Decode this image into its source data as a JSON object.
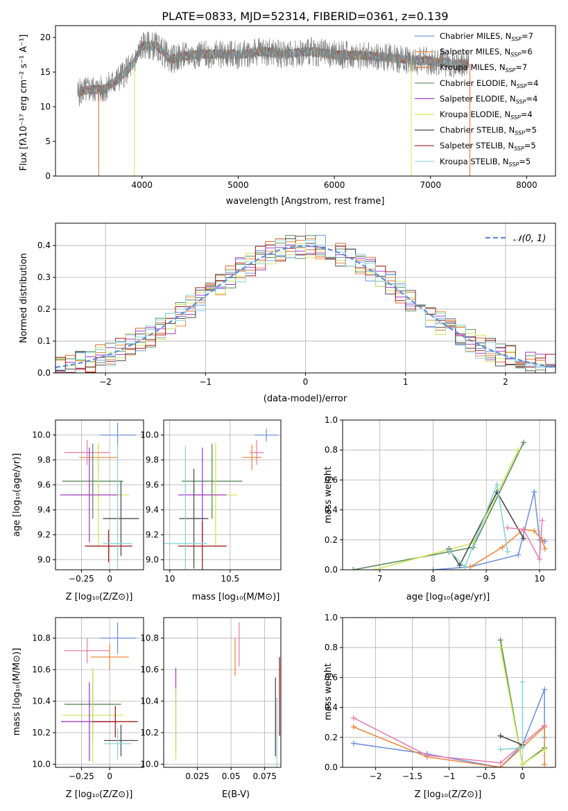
{
  "figure_title": "PLATE=0833, MJD=52314, FIBERID=0361, z=0.139",
  "colors": {
    "Chabrier MILES": "#6f94dc",
    "Salpeter MILES": "#ee8a3c",
    "Kroupa MILES": "#d96a2e",
    "Chabrier ELODIE": "#5a8a5a",
    "Salpeter ELODIE": "#a63ac9",
    "Kroupa ELODIE": "#cfe65a",
    "Chabrier STELIB": "#4b4b4b",
    "Salpeter STELIB": "#a11f1f",
    "Kroupa STELIB": "#86d4d8",
    "data": "#808080",
    "pink": "#e77fb0"
  },
  "chart_data": [
    {
      "id": "spectrum",
      "type": "line",
      "title": "",
      "xlabel": "wavelength [Angstrom, rest frame]",
      "ylabel": "Flux [fλ10⁻¹⁷ erg cm⁻² s⁻¹ A⁻¹]",
      "xlim": [
        3100,
        8300
      ],
      "ylim": [
        0,
        21.7
      ],
      "xticks": [
        4000,
        5000,
        6000,
        7000,
        8000
      ],
      "yticks": [
        0,
        5,
        10,
        15,
        20
      ],
      "grid": false,
      "legend_position": "top-right",
      "series": [
        {
          "name": "Chabrier MILES, N_SSP=7",
          "label_main": "Chabrier MILES, N",
          "label_sub": "SSP",
          "label_tail": "=7"
        },
        {
          "name": "Salpeter MILES, N_SSP=6",
          "label_main": "Salpeter MILES, N",
          "label_sub": "SSP",
          "label_tail": "=6"
        },
        {
          "name": "Kroupa MILES, N_SSP=7",
          "label_main": "Kroupa MILES, N",
          "label_sub": "SSP",
          "label_tail": "=7"
        },
        {
          "name": "Chabrier ELODIE, N_SSP=4",
          "label_main": "Chabrier ELODIE, N",
          "label_sub": "SSP",
          "label_tail": "=4"
        },
        {
          "name": "Salpeter ELODIE, N_SSP=4",
          "label_main": "Salpeter ELODIE, N",
          "label_sub": "SSP",
          "label_tail": "=4"
        },
        {
          "name": "Kroupa ELODIE, N_SSP=4",
          "label_main": "Kroupa ELODIE, N",
          "label_sub": "SSP",
          "label_tail": "=4"
        },
        {
          "name": "Chabrier STELIB, N_SSP=5",
          "label_main": "Chabrier STELIB, N",
          "label_sub": "SSP",
          "label_tail": "=5"
        },
        {
          "name": "Salpeter STELIB, N_SSP=5",
          "label_main": "Salpeter STELIB, N",
          "label_sub": "SSP",
          "label_tail": "=5"
        },
        {
          "name": "Kroupa STELIB, N_SSP=5",
          "label_main": "Kroupa STELIB, N",
          "label_sub": "SSP",
          "label_tail": "=5"
        }
      ],
      "data_points": {
        "x": [
          3330,
          3450,
          3600,
          3750,
          3900,
          4000,
          4150,
          4300,
          4500,
          4750,
          5000,
          5250,
          5500,
          5750,
          6000,
          6250,
          6500,
          6750,
          7000,
          7250,
          7400
        ],
        "y": [
          12.0,
          12.5,
          12.5,
          14.0,
          16.0,
          18.8,
          18.8,
          16.8,
          17.5,
          17.6,
          17.5,
          18.0,
          17.6,
          18.0,
          17.5,
          17.4,
          17.2,
          16.8,
          16.6,
          16.2,
          16.2
        ]
      }
    },
    {
      "id": "residuals",
      "type": "line",
      "xlabel": "(data-model)/error",
      "ylabel": "Normed distribution",
      "xlim": [
        -2.5,
        2.5
      ],
      "ylim": [
        0,
        0.47
      ],
      "xticks": [
        -2,
        -1,
        0,
        1,
        2
      ],
      "yticks": [
        0.0,
        0.1,
        0.2,
        0.3,
        0.4
      ],
      "grid": true,
      "legend_position": "top-right",
      "legend_label": "𝒩(0, 1)",
      "reference": "standard normal curve"
    },
    {
      "id": "age-vs-Z",
      "type": "scatter",
      "xlabel": "Z [log₁₀(Z/Z⊙)]",
      "ylabel": "age  [log₁₀(age/yr)]",
      "xlim": [
        -0.48,
        0.3
      ],
      "ylim": [
        8.92,
        10.12
      ],
      "xticks": [
        -0.25,
        0.0
      ],
      "yticks": [
        9.0,
        9.2,
        9.4,
        9.6,
        9.8,
        10.0
      ],
      "grid": true,
      "points": [
        {
          "x": 0.07,
          "y": 10.0,
          "xerr": 0.16,
          "yerr": 0.1
        },
        {
          "x": -0.2,
          "y": 9.86,
          "xerr": 0.2,
          "yerr": 0.1
        },
        {
          "x": -0.1,
          "y": 9.82,
          "xerr": 0.17,
          "yerr": 0.1
        },
        {
          "x": -0.15,
          "y": 9.63,
          "xerr": 0.27,
          "yerr": 0.3
        },
        {
          "x": -0.1,
          "y": 9.52,
          "xerr": 0.27,
          "yerr": 0.42
        },
        {
          "x": -0.18,
          "y": 9.52,
          "xerr": 0.26,
          "yerr": 0.38
        },
        {
          "x": 0.1,
          "y": 9.33,
          "xerr": 0.16,
          "yerr": 0.3
        },
        {
          "x": -0.01,
          "y": 9.11,
          "xerr": 0.21,
          "yerr": 0.13
        },
        {
          "x": 0.07,
          "y": 9.13,
          "xerr": 0.13,
          "yerr": 0.8
        }
      ]
    },
    {
      "id": "age-vs-mass",
      "type": "scatter",
      "xlabel": "mass [log₁₀(M/M⊙)]",
      "ylabel": "",
      "xlim": [
        9.95,
        10.92
      ],
      "ylim": [
        8.92,
        10.12
      ],
      "xticks": [
        10.0,
        10.5
      ],
      "yticks": [
        9.0,
        9.2,
        9.4,
        9.6,
        9.8,
        10.0
      ],
      "grid": true,
      "points": [
        {
          "x": 10.8,
          "y": 10.0,
          "xerr": 0.1,
          "yerr": 0.05
        },
        {
          "x": 10.72,
          "y": 9.86,
          "xerr": 0.06,
          "yerr": 0.1
        },
        {
          "x": 10.68,
          "y": 9.82,
          "xerr": 0.08,
          "yerr": 0.1
        },
        {
          "x": 10.35,
          "y": 9.63,
          "xerr": 0.25,
          "yerr": 0.3
        },
        {
          "x": 10.38,
          "y": 9.52,
          "xerr": 0.18,
          "yerr": 0.42
        },
        {
          "x": 10.27,
          "y": 9.52,
          "xerr": 0.2,
          "yerr": 0.38
        },
        {
          "x": 10.2,
          "y": 9.33,
          "xerr": 0.12,
          "yerr": 0.4
        },
        {
          "x": 10.27,
          "y": 9.11,
          "xerr": 0.2,
          "yerr": 0.2
        },
        {
          "x": 10.13,
          "y": 9.13,
          "xerr": 0.18,
          "yerr": 0.78
        }
      ]
    },
    {
      "id": "massweight-vs-age",
      "type": "line",
      "xlabel": "age  [log₁₀(age/yr)]",
      "ylabel": "mass weight",
      "xlim": [
        6.3,
        10.3
      ],
      "ylim": [
        0.0,
        1.0
      ],
      "xticks": [
        7,
        8,
        9,
        10
      ],
      "yticks": [
        0.0,
        0.2,
        0.4,
        0.6,
        0.8,
        1.0
      ],
      "grid": true,
      "series": [
        {
          "name": "Chabrier MILES",
          "x": [
            8.0,
            8.7,
            9.6,
            9.9,
            10.0,
            10.1
          ],
          "y": [
            0.0,
            0.02,
            0.1,
            0.52,
            0.2,
            0.19
          ]
        },
        {
          "name": "Salpeter MILES",
          "x": [
            8.7,
            9.3,
            9.7,
            9.9,
            10.05,
            10.1
          ],
          "y": [
            0.02,
            0.15,
            0.27,
            0.26,
            0.2,
            0.14
          ]
        },
        {
          "name": "Chabrier ELODIE",
          "x": [
            6.5,
            8.3,
            8.75,
            9.7
          ],
          "y": [
            0.0,
            0.12,
            0.15,
            0.85
          ]
        },
        {
          "name": "Kroupa ELODIE",
          "x": [
            6.9,
            8.75,
            9.6
          ],
          "y": [
            0.0,
            0.18,
            0.8
          ]
        },
        {
          "name": "Chabrier STELIB",
          "x": [
            8.3,
            8.5,
            9.2,
            9.7
          ],
          "y": [
            0.14,
            0.03,
            0.52,
            0.21
          ]
        },
        {
          "name": "Kroupa STELIB",
          "x": [
            8.3,
            8.6,
            9.2,
            9.4
          ],
          "y": [
            0.13,
            0.02,
            0.57,
            0.12
          ]
        },
        {
          "name": "Salpeter ELODIE",
          "x": [
            9.4,
            9.7,
            10.0,
            10.05
          ],
          "y": [
            0.28,
            0.27,
            0.07,
            0.33
          ]
        }
      ]
    },
    {
      "id": "mass-vs-Z",
      "type": "scatter",
      "xlabel": "Z [log₁₀(Z/Z⊙)]",
      "ylabel": "mass [log₁₀(M/M⊙)]",
      "xlim": [
        -0.48,
        0.3
      ],
      "ylim": [
        9.98,
        10.93
      ],
      "xticks": [
        -0.25,
        0.0
      ],
      "yticks": [
        10.0,
        10.2,
        10.4,
        10.6,
        10.8
      ],
      "grid": true,
      "points": [
        {
          "x": 0.07,
          "y": 10.8,
          "xerr": 0.16,
          "yerr": 0.1
        },
        {
          "x": -0.2,
          "y": 10.72,
          "xerr": 0.2,
          "yerr": 0.08
        },
        {
          "x": 0.0,
          "y": 10.68,
          "xerr": 0.17,
          "yerr": 0.08
        },
        {
          "x": -0.15,
          "y": 10.38,
          "xerr": 0.25,
          "yerr": 0.22
        },
        {
          "x": -0.15,
          "y": 10.31,
          "xerr": 0.27,
          "yerr": 0.3
        },
        {
          "x": -0.18,
          "y": 10.27,
          "xerr": 0.25,
          "yerr": 0.25
        },
        {
          "x": 0.1,
          "y": 10.15,
          "xerr": 0.15,
          "yerr": 0.1
        },
        {
          "x": 0.05,
          "y": 10.27,
          "xerr": 0.2,
          "yerr": 0.1
        },
        {
          "x": 0.07,
          "y": 10.13,
          "xerr": 0.12,
          "yerr": 0.1
        }
      ]
    },
    {
      "id": "mass-vs-EBV",
      "type": "scatter",
      "xlabel": "E(B-V)",
      "ylabel": "",
      "xlim": [
        0.0,
        0.087
      ],
      "ylim": [
        9.98,
        10.93
      ],
      "xticks": [
        0.025,
        0.05,
        0.075
      ],
      "yticks": [
        10.0,
        10.2,
        10.4,
        10.6,
        10.8
      ],
      "grid": true,
      "points": [
        {
          "x": 0.056,
          "y": 10.76,
          "yerr": 0.14
        },
        {
          "x": 0.053,
          "y": 10.68,
          "yerr": 0.12
        },
        {
          "x": 0.009,
          "y": 10.35,
          "yerr": 0.26
        },
        {
          "x": 0.009,
          "y": 10.25,
          "yerr": 0.23
        },
        {
          "x": 0.086,
          "y": 10.43,
          "yerr": 0.25
        },
        {
          "x": 0.083,
          "y": 10.3,
          "yerr": 0.25
        },
        {
          "x": 0.084,
          "y": 10.2,
          "yerr": 0.22
        }
      ]
    },
    {
      "id": "massweight-vs-Z",
      "type": "line",
      "xlabel": "Z [log₁₀(Z/Z⊙)]",
      "ylabel": "mass weight",
      "xlim": [
        -2.45,
        0.45
      ],
      "ylim": [
        0.0,
        1.0
      ],
      "xticks": [
        -2.0,
        -1.5,
        -1.0,
        -0.5,
        0.0
      ],
      "yticks": [
        0.0,
        0.2,
        0.4,
        0.6,
        0.8,
        1.0
      ],
      "grid": true,
      "series": [
        {
          "name": "Chabrier MILES",
          "x": [
            -2.3,
            -1.3,
            -0.3,
            0.0,
            0.3,
            0.3
          ],
          "y": [
            0.16,
            0.09,
            0.0,
            0.15,
            0.52,
            0.2
          ]
        },
        {
          "name": "Salpeter MILES",
          "x": [
            -2.3,
            -1.3,
            -0.3,
            0.3,
            0.3
          ],
          "y": [
            0.27,
            0.07,
            0.0,
            0.27,
            0.02
          ]
        },
        {
          "name": "Salpeter ELODIE",
          "x": [
            -2.3,
            -1.3,
            -0.3,
            0.3
          ],
          "y": [
            0.33,
            0.08,
            0.03,
            0.28
          ]
        },
        {
          "name": "Chabrier ELODIE",
          "x": [
            -0.3,
            0.0,
            0.3
          ],
          "y": [
            0.85,
            0.02,
            0.13
          ]
        },
        {
          "name": "Kroupa ELODIE",
          "x": [
            -0.3,
            0.0,
            0.3
          ],
          "y": [
            0.8,
            0.02,
            0.12
          ]
        },
        {
          "name": "Chabrier STELIB",
          "x": [
            -0.3,
            0.0
          ],
          "y": [
            0.21,
            0.15
          ]
        },
        {
          "name": "Kroupa STELIB",
          "x": [
            -0.3,
            0.0,
            0.0
          ],
          "y": [
            0.12,
            0.13,
            0.57
          ]
        }
      ]
    }
  ]
}
